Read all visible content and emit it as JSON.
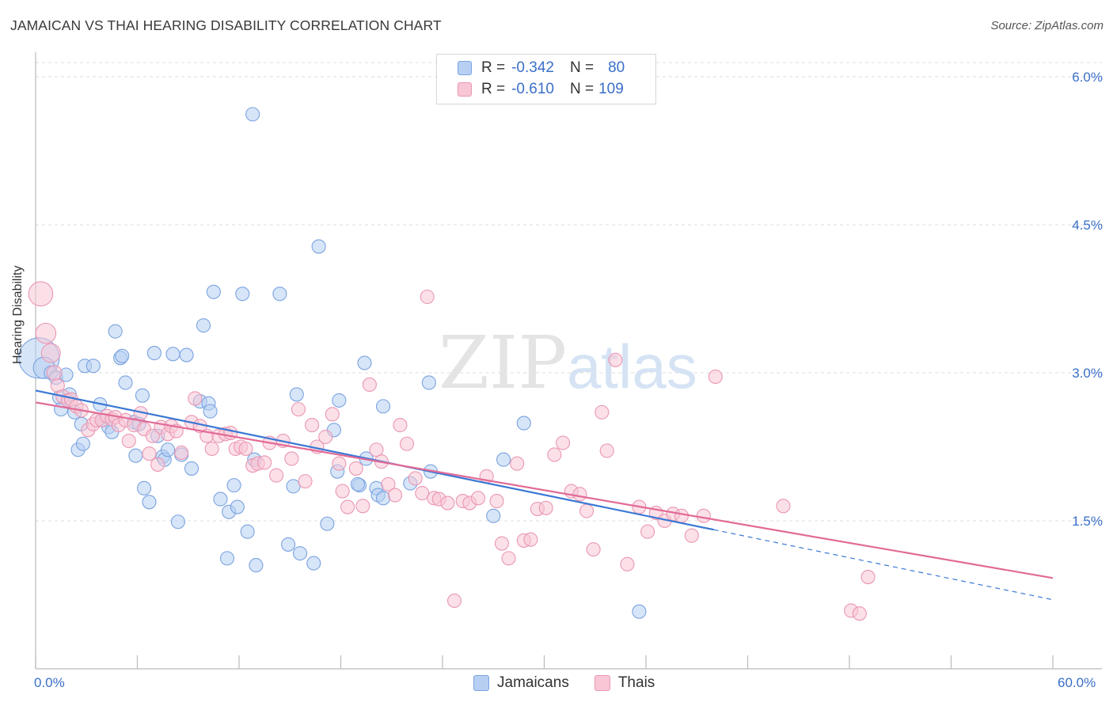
{
  "title": "JAMAICAN VS THAI HEARING DISABILITY CORRELATION CHART",
  "source": "Source: ZipAtlas.com",
  "watermark": {
    "zip": "ZIP",
    "atlas": "atlas"
  },
  "legend": {
    "jamaicans": {
      "r_label": "R =",
      "r": "-0.342",
      "n_label": "N =",
      "n": "80"
    },
    "thais": {
      "r_label": "R =",
      "r": "-0.610",
      "n_label": "N =",
      "n": "109"
    }
  },
  "bottom_legend": {
    "jamaicans": "Jamaicans",
    "thais": "Thais"
  },
  "x_axis": {
    "min_label": "0.0%",
    "max_label": "60.0%"
  },
  "colors": {
    "jamaicans_fill": "#b7cff3",
    "jamaicans_stroke": "#7aa3e0",
    "jamaicans_line": "#3a78d4",
    "thais_fill": "#f8c6d5",
    "thais_stroke": "#ea97b3",
    "thais_line": "#e26a96",
    "value_text": "#3a6fc8"
  },
  "chart_data": {
    "type": "scatter",
    "title": "JAMAICAN VS THAI HEARING DISABILITY CORRELATION CHART",
    "xlabel": "",
    "ylabel": "Hearing Disability",
    "xlim": [
      0,
      60
    ],
    "ylim": [
      0,
      6.2
    ],
    "y_ticks": [
      1.5,
      3.0,
      4.5,
      6.0
    ],
    "y_tick_labels": [
      "1.5%",
      "3.0%",
      "4.5%",
      "6.0%"
    ],
    "x_tick_labels": [
      "0.0%",
      "60.0%"
    ],
    "series": [
      {
        "name": "Jamaicans",
        "r": -0.342,
        "n": 80,
        "trend": {
          "x0": 0,
          "y0": 2.82,
          "x1": 40,
          "y1": 1.41,
          "dash_to_x": 60,
          "dash_to_y": 0.7
        },
        "points": [
          [
            0.2,
            3.15,
            3
          ],
          [
            0.5,
            3.05,
            1.6
          ],
          [
            0.9,
            3.0,
            1
          ],
          [
            1.2,
            2.95,
            1
          ],
          [
            1.4,
            2.75,
            1
          ],
          [
            1.8,
            2.98,
            1
          ],
          [
            1.5,
            2.63,
            1
          ],
          [
            2.0,
            2.78,
            1
          ],
          [
            1.9,
            2.72,
            1
          ],
          [
            2.3,
            2.6,
            1
          ],
          [
            2.5,
            2.22,
            1
          ],
          [
            2.7,
            2.48,
            1
          ],
          [
            2.8,
            2.28,
            1
          ],
          [
            2.9,
            3.07,
            1
          ],
          [
            3.4,
            3.07,
            1
          ],
          [
            3.8,
            2.68,
            1
          ],
          [
            4.0,
            2.52,
            1
          ],
          [
            4.3,
            2.45,
            1
          ],
          [
            4.5,
            2.4,
            1
          ],
          [
            4.7,
            3.42,
            1
          ],
          [
            5.0,
            3.15,
            1
          ],
          [
            5.1,
            3.17,
            1
          ],
          [
            5.3,
            2.9,
            1
          ],
          [
            5.8,
            2.5,
            1
          ],
          [
            5.9,
            2.16,
            1
          ],
          [
            6.1,
            2.48,
            1
          ],
          [
            6.3,
            2.77,
            1
          ],
          [
            6.4,
            1.83,
            1
          ],
          [
            6.7,
            1.69,
            1
          ],
          [
            7.0,
            3.2,
            1
          ],
          [
            7.2,
            2.36,
            1
          ],
          [
            7.5,
            2.15,
            1
          ],
          [
            7.6,
            2.12,
            1
          ],
          [
            7.8,
            2.22,
            1
          ],
          [
            8.1,
            3.19,
            1
          ],
          [
            8.4,
            1.49,
            1
          ],
          [
            8.6,
            2.17,
            1
          ],
          [
            8.9,
            3.18,
            1
          ],
          [
            9.2,
            2.03,
            1
          ],
          [
            9.7,
            2.71,
            1
          ],
          [
            9.9,
            3.48,
            1
          ],
          [
            10.2,
            2.69,
            1
          ],
          [
            10.3,
            2.61,
            1
          ],
          [
            10.5,
            3.82,
            1
          ],
          [
            10.9,
            1.72,
            1
          ],
          [
            11.4,
            1.59,
            1
          ],
          [
            11.7,
            1.86,
            1
          ],
          [
            11.9,
            1.64,
            1
          ],
          [
            12.2,
            3.8,
            1
          ],
          [
            12.5,
            1.39,
            1
          ],
          [
            11.3,
            1.12,
            1
          ],
          [
            12.8,
            5.62,
            1
          ],
          [
            13.0,
            1.05,
            1
          ],
          [
            12.9,
            2.12,
            1
          ],
          [
            14.4,
            3.8,
            1
          ],
          [
            14.9,
            1.26,
            1
          ],
          [
            15.2,
            1.85,
            1
          ],
          [
            15.4,
            2.78,
            1
          ],
          [
            15.6,
            1.17,
            1
          ],
          [
            16.4,
            1.07,
            1
          ],
          [
            16.7,
            4.28,
            1
          ],
          [
            17.2,
            1.47,
            1
          ],
          [
            17.6,
            2.42,
            1
          ],
          [
            17.8,
            2.0,
            1
          ],
          [
            17.9,
            2.72,
            1
          ],
          [
            19.1,
            1.86,
            1
          ],
          [
            19.0,
            1.87,
            1
          ],
          [
            19.4,
            3.1,
            1
          ],
          [
            19.5,
            2.13,
            1
          ],
          [
            20.1,
            1.83,
            1
          ],
          [
            20.2,
            1.76,
            1
          ],
          [
            20.5,
            1.73,
            1
          ],
          [
            20.5,
            2.66,
            1
          ],
          [
            22.1,
            1.88,
            1
          ],
          [
            23.2,
            2.9,
            1
          ],
          [
            23.3,
            2.0,
            1
          ],
          [
            27.0,
            1.55,
            1
          ],
          [
            27.6,
            2.12,
            1
          ],
          [
            28.8,
            2.49,
            1
          ],
          [
            35.6,
            0.58,
            1
          ]
        ]
      },
      {
        "name": "Thais",
        "r": -0.61,
        "n": 109,
        "trend": {
          "x0": 0,
          "y0": 2.7,
          "x1": 60,
          "y1": 0.92
        },
        "points": [
          [
            0.3,
            3.8,
            1.8
          ],
          [
            0.6,
            3.4,
            1.5
          ],
          [
            0.9,
            3.2,
            1.4
          ],
          [
            1.1,
            3.0,
            1.1
          ],
          [
            1.3,
            2.87,
            1
          ],
          [
            1.6,
            2.76,
            1
          ],
          [
            1.9,
            2.72,
            1
          ],
          [
            2.1,
            2.73,
            1
          ],
          [
            2.4,
            2.66,
            1
          ],
          [
            2.7,
            2.62,
            1
          ],
          [
            3.1,
            2.42,
            1
          ],
          [
            3.4,
            2.48,
            1
          ],
          [
            3.6,
            2.52,
            1
          ],
          [
            3.9,
            2.52,
            1
          ],
          [
            4.2,
            2.56,
            1
          ],
          [
            4.5,
            2.53,
            1
          ],
          [
            4.7,
            2.55,
            1
          ],
          [
            4.9,
            2.47,
            1
          ],
          [
            5.3,
            2.52,
            1
          ],
          [
            5.5,
            2.31,
            1
          ],
          [
            5.8,
            2.47,
            1
          ],
          [
            6.2,
            2.59,
            1
          ],
          [
            6.4,
            2.43,
            1
          ],
          [
            6.7,
            2.18,
            1
          ],
          [
            6.9,
            2.36,
            1
          ],
          [
            7.2,
            2.07,
            1
          ],
          [
            7.4,
            2.45,
            1
          ],
          [
            7.8,
            2.38,
            1
          ],
          [
            8.0,
            2.46,
            1
          ],
          [
            8.3,
            2.41,
            1
          ],
          [
            8.6,
            2.19,
            1
          ],
          [
            9.2,
            2.5,
            1
          ],
          [
            9.4,
            2.74,
            1
          ],
          [
            9.7,
            2.46,
            1
          ],
          [
            10.1,
            2.36,
            1
          ],
          [
            10.4,
            2.23,
            1
          ],
          [
            10.8,
            2.36,
            1
          ],
          [
            11.2,
            2.38,
            1
          ],
          [
            11.5,
            2.39,
            1
          ],
          [
            11.8,
            2.23,
            1
          ],
          [
            12.1,
            2.25,
            1
          ],
          [
            12.4,
            2.23,
            1
          ],
          [
            12.8,
            2.06,
            1
          ],
          [
            13.1,
            2.08,
            1
          ],
          [
            13.5,
            2.09,
            1
          ],
          [
            13.8,
            2.29,
            1
          ],
          [
            14.2,
            1.96,
            1
          ],
          [
            14.6,
            2.31,
            1
          ],
          [
            15.1,
            2.13,
            1
          ],
          [
            15.5,
            2.63,
            1
          ],
          [
            15.9,
            1.9,
            1
          ],
          [
            16.3,
            2.47,
            1
          ],
          [
            16.6,
            2.25,
            1
          ],
          [
            17.1,
            2.35,
            1
          ],
          [
            17.5,
            2.58,
            1
          ],
          [
            17.9,
            2.08,
            1
          ],
          [
            18.1,
            1.8,
            1
          ],
          [
            18.4,
            1.64,
            1
          ],
          [
            18.9,
            2.03,
            1
          ],
          [
            19.3,
            1.65,
            1
          ],
          [
            19.7,
            2.88,
            1
          ],
          [
            20.1,
            2.22,
            1
          ],
          [
            20.4,
            2.1,
            1
          ],
          [
            20.8,
            1.87,
            1
          ],
          [
            21.2,
            1.76,
            1
          ],
          [
            21.5,
            2.47,
            1
          ],
          [
            21.9,
            2.28,
            1
          ],
          [
            22.4,
            1.93,
            1
          ],
          [
            22.8,
            1.78,
            1
          ],
          [
            23.1,
            3.77,
            1
          ],
          [
            23.5,
            1.73,
            1
          ],
          [
            23.8,
            1.72,
            1
          ],
          [
            24.3,
            1.68,
            1
          ],
          [
            24.7,
            0.69,
            1
          ],
          [
            25.2,
            1.7,
            1
          ],
          [
            25.6,
            1.68,
            1
          ],
          [
            26.1,
            1.73,
            1
          ],
          [
            26.6,
            1.95,
            1
          ],
          [
            27.2,
            1.7,
            1
          ],
          [
            27.5,
            1.27,
            1
          ],
          [
            27.9,
            1.12,
            1
          ],
          [
            28.4,
            2.08,
            1
          ],
          [
            28.8,
            1.3,
            1
          ],
          [
            29.2,
            1.31,
            1
          ],
          [
            29.6,
            1.62,
            1
          ],
          [
            30.1,
            1.63,
            1
          ],
          [
            30.6,
            2.17,
            1
          ],
          [
            31.1,
            2.29,
            1
          ],
          [
            31.6,
            1.8,
            1
          ],
          [
            32.1,
            1.77,
            1
          ],
          [
            32.5,
            1.6,
            1
          ],
          [
            32.9,
            1.21,
            1
          ],
          [
            33.4,
            2.6,
            1
          ],
          [
            33.7,
            2.21,
            1
          ],
          [
            34.2,
            3.13,
            1
          ],
          [
            34.9,
            1.06,
            1
          ],
          [
            35.6,
            1.64,
            1
          ],
          [
            36.1,
            1.39,
            1
          ],
          [
            36.6,
            1.58,
            1
          ],
          [
            37.1,
            1.5,
            1
          ],
          [
            37.6,
            1.57,
            1
          ],
          [
            38.1,
            1.55,
            1
          ],
          [
            38.7,
            1.35,
            1
          ],
          [
            39.4,
            1.55,
            1
          ],
          [
            40.1,
            2.96,
            1
          ],
          [
            44.1,
            1.65,
            1
          ],
          [
            48.1,
            0.59,
            1
          ],
          [
            48.6,
            0.56,
            1
          ],
          [
            49.1,
            0.93,
            1
          ]
        ]
      }
    ]
  }
}
